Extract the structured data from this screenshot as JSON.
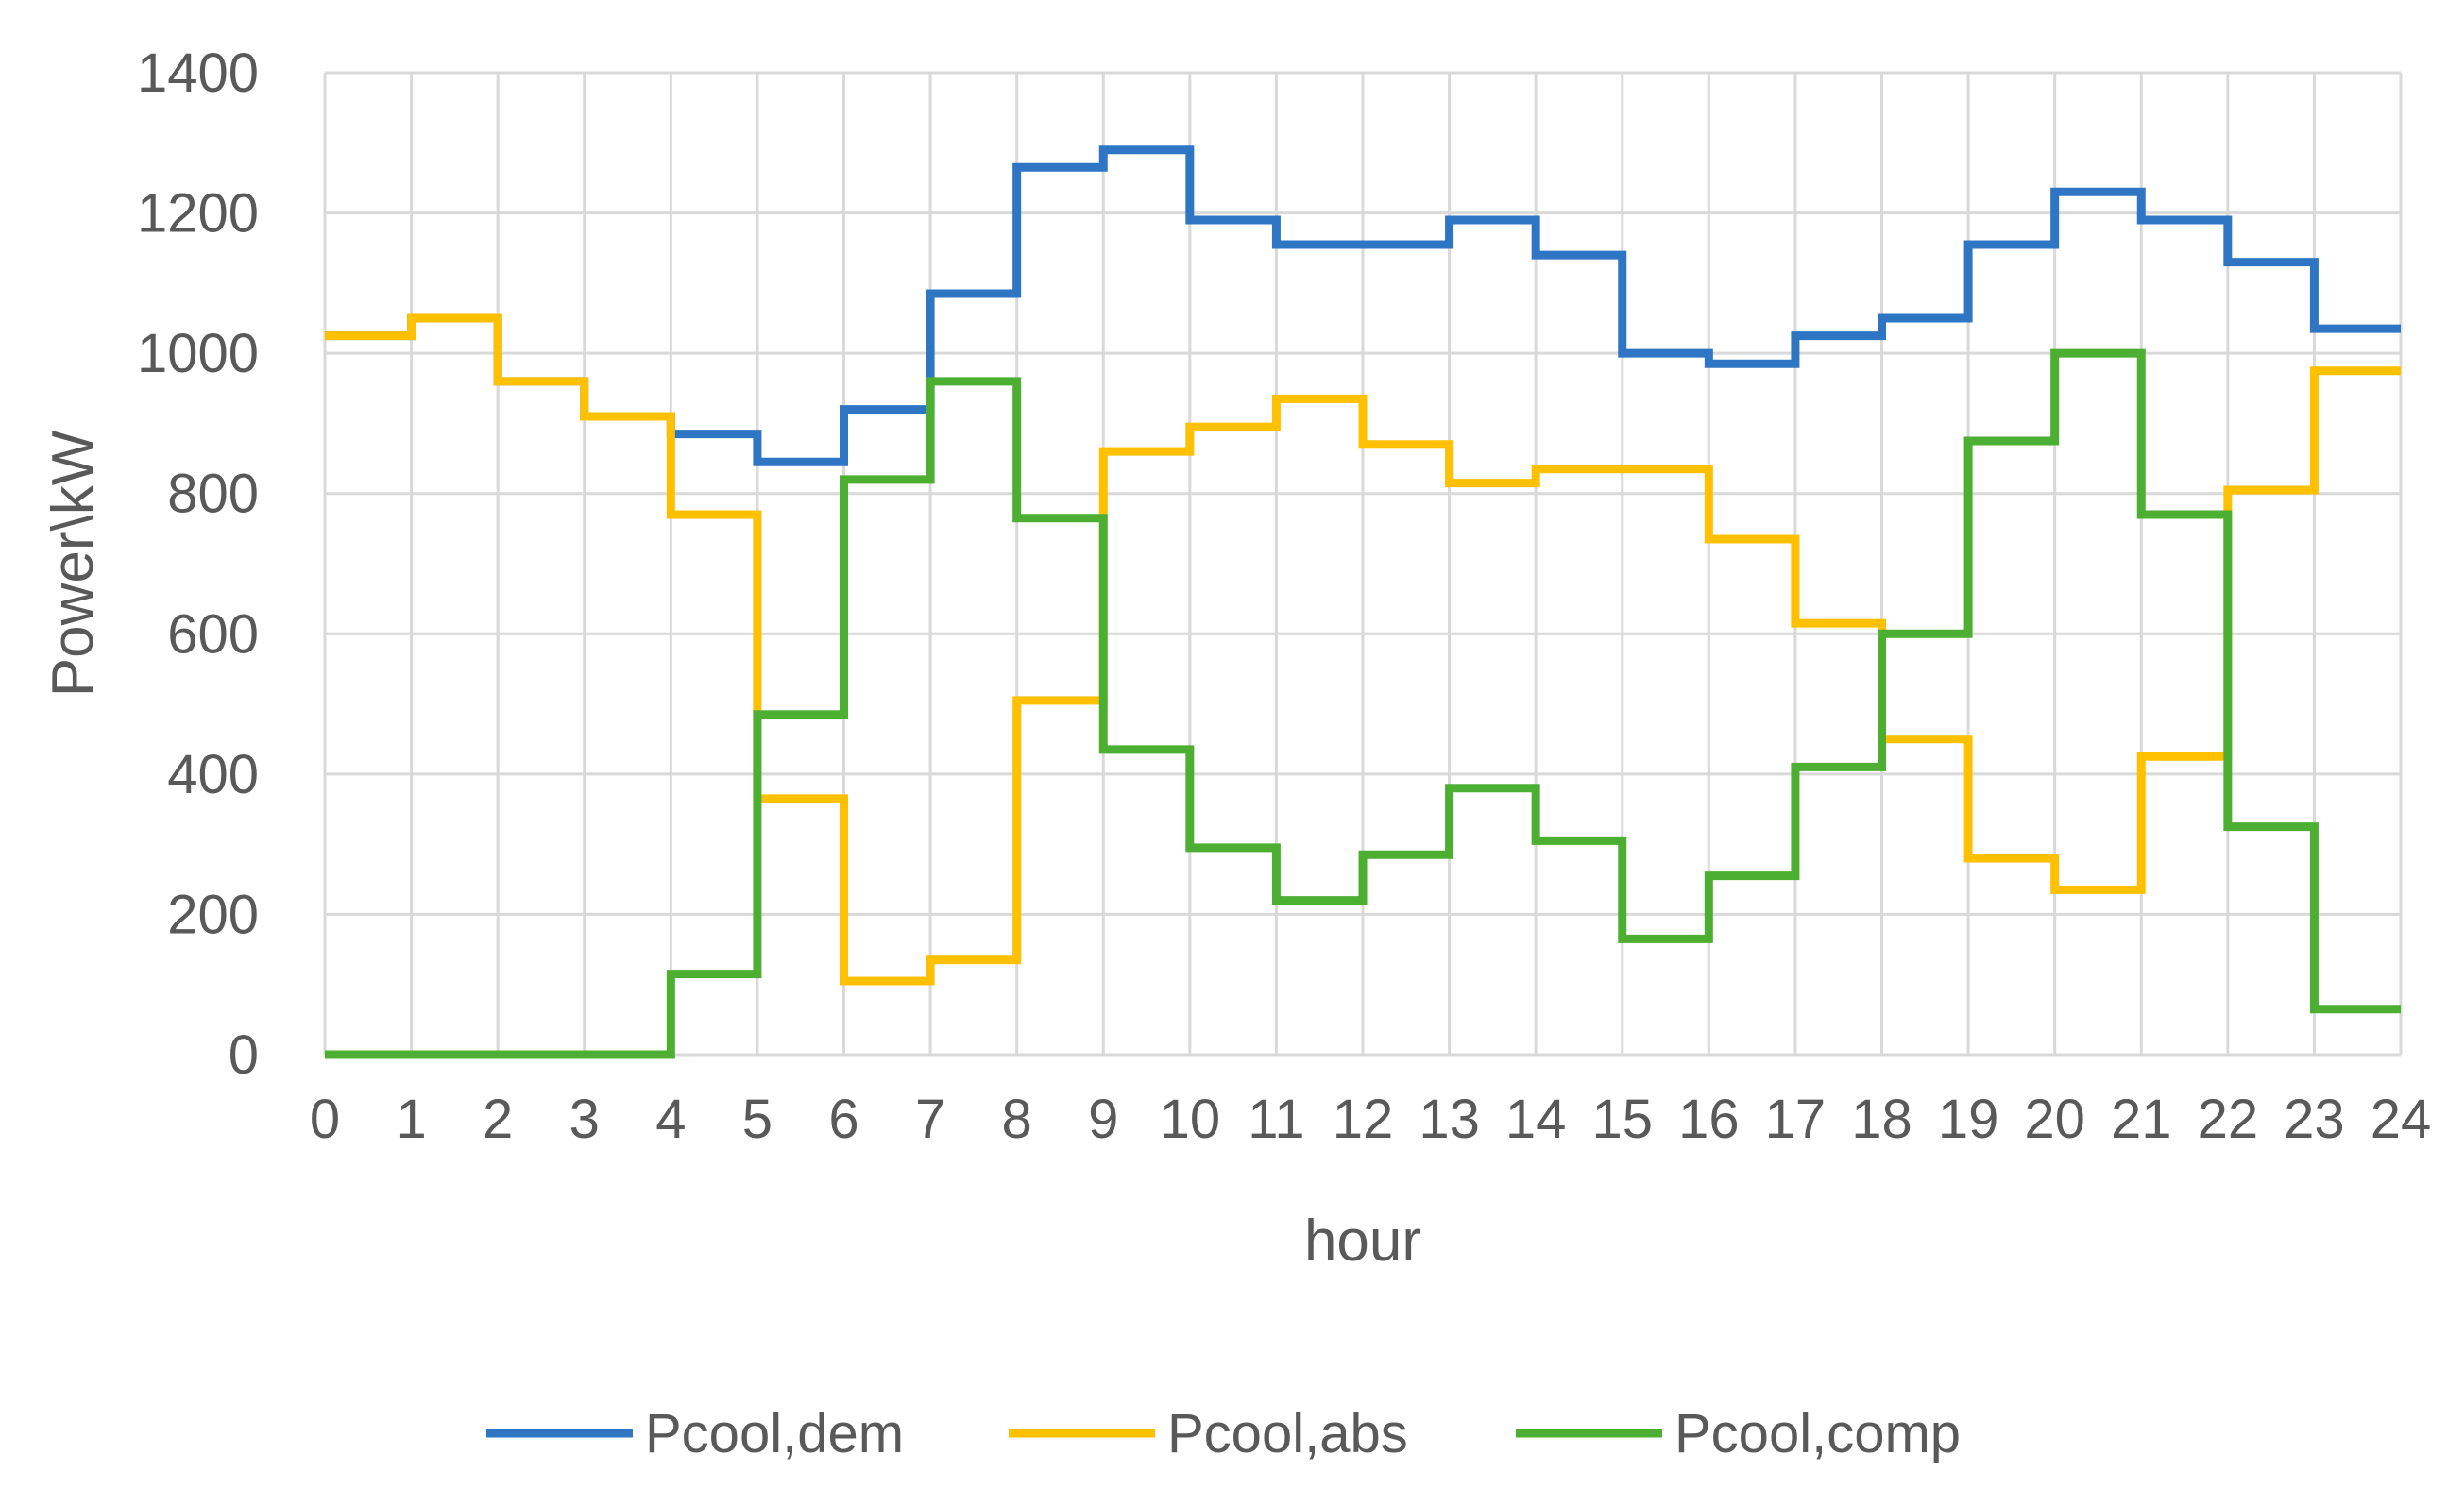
{
  "chart_data": {
    "type": "line",
    "step": true,
    "xlabel": "hour",
    "ylabel": "Power\\kW",
    "xlim": [
      0,
      24
    ],
    "ylim": [
      0,
      1400
    ],
    "x_ticks": [
      "0",
      "1",
      "2",
      "3",
      "4",
      "5",
      "6",
      "7",
      "8",
      "9",
      "10",
      "11",
      "12",
      "13",
      "14",
      "15",
      "16",
      "17",
      "18",
      "19",
      "20",
      "21",
      "22",
      "23",
      "24"
    ],
    "y_ticks": [
      "0",
      "200",
      "400",
      "600",
      "800",
      "1000",
      "1200",
      "1400"
    ],
    "grid": true,
    "legend_position": "bottom",
    "hours": [
      0,
      1,
      2,
      3,
      4,
      5,
      6,
      7,
      8,
      9,
      10,
      11,
      12,
      13,
      14,
      15,
      16,
      17,
      18,
      19,
      20,
      21,
      22,
      23
    ],
    "series": [
      {
        "name": "Pcool,dem",
        "color": "#2E75C4",
        "values": [
          1025,
          1050,
          960,
          910,
          885,
          845,
          920,
          1085,
          1265,
          1290,
          1190,
          1155,
          1155,
          1190,
          1140,
          1000,
          985,
          1025,
          1050,
          1155,
          1230,
          1190,
          1130,
          1035
        ]
      },
      {
        "name": "Pcool,abs",
        "color": "#FFC000",
        "values": [
          1025,
          1050,
          960,
          910,
          770,
          365,
          105,
          135,
          505,
          860,
          895,
          935,
          870,
          815,
          835,
          835,
          735,
          615,
          450,
          280,
          235,
          425,
          805,
          975
        ]
      },
      {
        "name": "Pcool,comp",
        "color": "#4CAF32",
        "values": [
          0,
          0,
          0,
          0,
          115,
          485,
          820,
          960,
          765,
          435,
          295,
          220,
          285,
          380,
          305,
          165,
          255,
          410,
          600,
          875,
          1000,
          770,
          325,
          65
        ]
      }
    ]
  }
}
